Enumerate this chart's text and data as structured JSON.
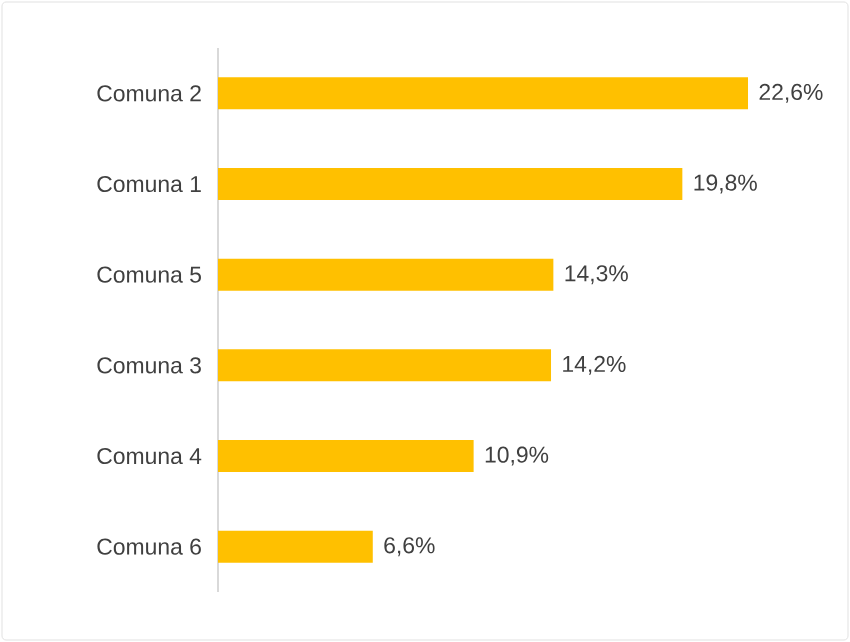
{
  "chart_data": {
    "type": "bar",
    "orientation": "horizontal",
    "categories": [
      "Comuna 2",
      "Comuna 1",
      "Comuna 5",
      "Comuna 3",
      "Comuna 4",
      "Comuna 6"
    ],
    "values": [
      22.6,
      19.8,
      14.3,
      14.2,
      10.9,
      6.6
    ],
    "value_labels": [
      "22,6%",
      "19,8%",
      "14,3%",
      "14,2%",
      "10,9%",
      "6,6%"
    ],
    "color": "#ffc000",
    "tick_labels": "y"
  }
}
